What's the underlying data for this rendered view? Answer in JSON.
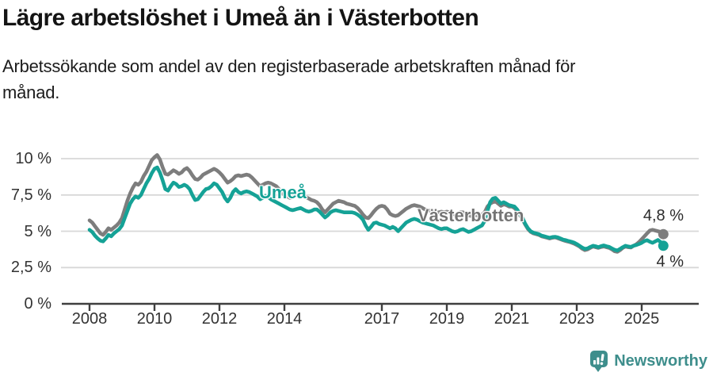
{
  "header": {
    "title": "Lägre arbetslöshet i Umeå än i Västerbotten",
    "subtitle_lines": [
      "Arbetssökande som andel av den registerbaserade arbetskraften månad för",
      "månad."
    ]
  },
  "chart_data": {
    "type": "line",
    "title": "Lägre arbetslöshet i Umeå än i Västerbotten",
    "subtitle": "Arbetssökande som andel av den registerbaserade arbetskraften månad för månad.",
    "unit": "%",
    "frequency": "monthly",
    "x_start": "2008-01",
    "x_end": "2025-09",
    "x_start_year": 2008,
    "ylim": [
      0,
      10.5
    ],
    "grid": true,
    "legend_position": "inline",
    "y_ticks": [
      {
        "value": 0,
        "label": "0 %"
      },
      {
        "value": 2.5,
        "label": "2,5 %"
      },
      {
        "value": 5,
        "label": "5 %"
      },
      {
        "value": 7.5,
        "label": "7,5 %"
      },
      {
        "value": 10,
        "label": "10 %"
      }
    ],
    "x_ticks": [
      {
        "year": 2008,
        "label": "2008"
      },
      {
        "year": 2010,
        "label": "2010"
      },
      {
        "year": 2012,
        "label": "2012"
      },
      {
        "year": 2014,
        "label": "2014"
      },
      {
        "year": 2017,
        "label": "2017"
      },
      {
        "year": 2019,
        "label": "2019"
      },
      {
        "year": 2021,
        "label": "2021"
      },
      {
        "year": 2023,
        "label": "2023"
      },
      {
        "year": 2025,
        "label": "2025"
      }
    ],
    "series": [
      {
        "name": "Umeå",
        "inline_label": "Umeå",
        "end_label": "4 %",
        "end_value": 4.0,
        "color": "#15a296",
        "values": [
          5.1,
          4.95,
          4.7,
          4.5,
          4.35,
          4.3,
          4.5,
          4.75,
          4.65,
          4.85,
          5.0,
          5.15,
          5.4,
          5.9,
          6.4,
          6.9,
          7.2,
          7.4,
          7.3,
          7.5,
          7.9,
          8.3,
          8.6,
          9.0,
          9.3,
          9.4,
          9.05,
          8.5,
          7.9,
          7.8,
          8.1,
          8.35,
          8.25,
          8.05,
          8.1,
          8.2,
          8.1,
          7.9,
          7.5,
          7.15,
          7.2,
          7.45,
          7.7,
          7.9,
          7.95,
          8.1,
          8.3,
          8.2,
          7.95,
          7.7,
          7.3,
          7.05,
          7.3,
          7.7,
          7.9,
          7.7,
          7.6,
          7.7,
          7.75,
          7.7,
          7.6,
          7.5,
          7.4,
          7.2,
          7.3,
          7.45,
          7.35,
          7.2,
          7.1,
          7.0,
          6.9,
          6.8,
          6.7,
          6.6,
          6.5,
          6.45,
          6.5,
          6.55,
          6.6,
          6.5,
          6.4,
          6.35,
          6.4,
          6.5,
          6.5,
          6.35,
          6.15,
          5.95,
          6.1,
          6.3,
          6.4,
          6.45,
          6.4,
          6.35,
          6.3,
          6.3,
          6.3,
          6.3,
          6.25,
          6.15,
          6.0,
          5.8,
          5.4,
          5.1,
          5.3,
          5.55,
          5.6,
          5.5,
          5.45,
          5.4,
          5.3,
          5.2,
          5.3,
          5.2,
          5.0,
          5.2,
          5.4,
          5.6,
          5.7,
          5.8,
          5.85,
          5.8,
          5.7,
          5.6,
          5.55,
          5.5,
          5.45,
          5.4,
          5.3,
          5.2,
          5.15,
          5.2,
          5.2,
          5.1,
          5.0,
          4.95,
          5.0,
          5.1,
          5.15,
          5.05,
          4.95,
          5.0,
          5.1,
          5.2,
          5.3,
          5.4,
          5.7,
          6.4,
          7.0,
          7.25,
          7.3,
          7.1,
          6.9,
          7.0,
          6.9,
          6.8,
          6.75,
          6.7,
          6.5,
          6.2,
          5.9,
          5.5,
          5.2,
          5.0,
          4.9,
          4.85,
          4.8,
          4.7,
          4.65,
          4.6,
          4.55,
          4.6,
          4.62,
          4.58,
          4.5,
          4.42,
          4.38,
          4.32,
          4.28,
          4.22,
          4.12,
          4.0,
          3.88,
          3.78,
          3.82,
          3.92,
          4.0,
          3.96,
          3.9,
          3.98,
          4.02,
          3.96,
          3.92,
          3.82,
          3.72,
          3.68,
          3.78,
          3.9,
          4.0,
          3.95,
          3.92,
          4.0,
          4.05,
          4.12,
          4.2,
          4.32,
          4.38,
          4.28,
          4.2,
          4.3,
          4.4,
          4.25,
          4.0
        ]
      },
      {
        "name": "Västerbotten",
        "inline_label": "Västerbotten",
        "end_label": "4,8 %",
        "end_value": 4.8,
        "color": "#7d7d7d",
        "values": [
          5.75,
          5.6,
          5.35,
          5.1,
          4.85,
          4.75,
          4.95,
          5.2,
          5.1,
          5.25,
          5.4,
          5.6,
          5.9,
          6.5,
          7.1,
          7.6,
          8.0,
          8.3,
          8.2,
          8.4,
          8.8,
          9.1,
          9.5,
          9.9,
          10.1,
          10.25,
          9.95,
          9.4,
          8.95,
          8.9,
          9.05,
          9.2,
          9.1,
          8.95,
          9.05,
          9.25,
          9.35,
          9.15,
          8.85,
          8.6,
          8.55,
          8.7,
          8.9,
          9.0,
          9.1,
          9.2,
          9.3,
          9.2,
          9.05,
          8.85,
          8.6,
          8.35,
          8.45,
          8.6,
          8.8,
          8.85,
          8.8,
          8.85,
          8.9,
          8.85,
          8.7,
          8.5,
          8.3,
          8.1,
          8.2,
          8.3,
          8.35,
          8.3,
          8.2,
          8.1,
          7.9,
          7.65,
          7.5,
          7.4,
          7.3,
          7.35,
          7.45,
          7.5,
          7.55,
          7.45,
          7.35,
          7.25,
          7.15,
          7.1,
          7.0,
          6.8,
          6.5,
          6.3,
          6.5,
          6.7,
          6.9,
          7.0,
          7.1,
          7.05,
          7.0,
          6.9,
          6.85,
          6.8,
          6.75,
          6.6,
          6.4,
          6.15,
          5.95,
          5.9,
          6.1,
          6.35,
          6.55,
          6.7,
          6.75,
          6.7,
          6.5,
          6.2,
          6.1,
          6.05,
          6.1,
          6.25,
          6.4,
          6.55,
          6.65,
          6.75,
          6.8,
          6.75,
          6.7,
          6.6,
          6.5,
          6.45,
          6.4,
          6.35,
          6.3,
          6.3,
          6.35,
          6.3,
          6.35,
          6.3,
          6.2,
          6.15,
          6.2,
          6.3,
          6.3,
          6.2,
          6.1,
          6.05,
          6.1,
          6.1,
          6.1,
          6.15,
          6.3,
          6.7,
          6.9,
          7.0,
          7.05,
          6.9,
          6.75,
          6.85,
          6.8,
          6.7,
          6.7,
          6.6,
          6.4,
          6.1,
          5.8,
          5.45,
          5.15,
          4.95,
          4.85,
          4.8,
          4.75,
          4.65,
          4.6,
          4.55,
          4.5,
          4.55,
          4.58,
          4.52,
          4.45,
          4.38,
          4.32,
          4.28,
          4.22,
          4.15,
          4.05,
          3.95,
          3.8,
          3.7,
          3.75,
          3.85,
          3.95,
          3.9,
          3.85,
          3.92,
          3.95,
          3.9,
          3.85,
          3.75,
          3.62,
          3.58,
          3.7,
          3.85,
          3.95,
          3.9,
          3.88,
          4.0,
          4.1,
          4.25,
          4.45,
          4.65,
          4.85,
          5.05,
          5.1,
          5.05,
          5.0,
          4.95,
          4.8
        ]
      }
    ],
    "colors": {
      "umea": "#15a296",
      "vasterbotten": "#7d7d7d",
      "grid": "#d8d8d8",
      "axis": "#3f3f3f",
      "tick_text": "#333333"
    }
  },
  "footer": {
    "brand": "Newsworthy",
    "logo_icon": "newsworthy-speech-bubble-bar-chart-icon",
    "brand_color": "#3e8e8c"
  }
}
